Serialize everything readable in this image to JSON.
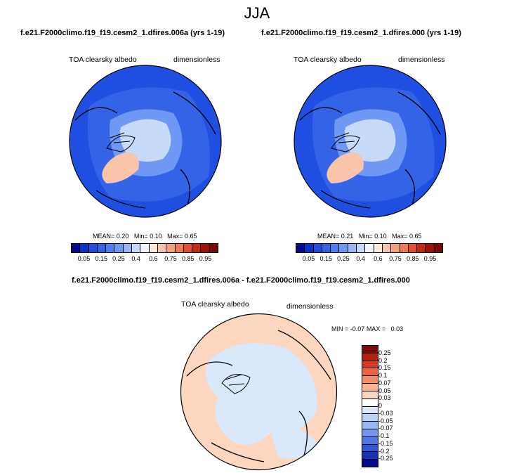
{
  "season": "JJA",
  "panels": [
    {
      "title": "f.e21.F2000climo.f19_f19.cesm2_1.dfires.006a (yrs 1-19)",
      "variable": "TOA clearsky albedo",
      "units": "dimensionless",
      "stats": {
        "mean_label": "MEAN=",
        "mean": "0.20",
        "min_label": "Min=",
        "min": "0.10",
        "max_label": "Max=",
        "max": "0.65"
      }
    },
    {
      "title": "f.e21.F2000climo.f19_f19.cesm2_1.dfires.000 (yrs 1-19)",
      "variable": "TOA clearsky albedo",
      "units": "dimensionless",
      "stats": {
        "mean_label": "MEAN=",
        "mean": "0.21",
        "min_label": "Min=",
        "min": "0.10",
        "max_label": "Max=",
        "max": "0.65"
      }
    }
  ],
  "main_colorbar": {
    "colors": [
      "#08088a",
      "#0d2fc4",
      "#1f4fe0",
      "#3563e8",
      "#4f7ff0",
      "#6f98f4",
      "#9ab6f7",
      "#c7daf9",
      "#eef5fc",
      "#fde7d8",
      "#f9c4a8",
      "#f4a07e",
      "#ee7a58",
      "#e04f33",
      "#c42a17",
      "#a0100a",
      "#7a0a05"
    ],
    "tick_labels": [
      "0.05",
      "0.15",
      "0.25",
      "0.4",
      "0.6",
      "0.75",
      "0.85",
      "0.95"
    ]
  },
  "difference": {
    "title": "f.e21.F2000climo.f19_f19.cesm2_1.dfires.006a - f.e21.F2000climo.f19_f19.cesm2_1.dfires.000",
    "variable": "TOA clearsky albedo",
    "units": "dimensionless",
    "stats": {
      "min_label": "MIN =",
      "min": "-0.07",
      "max_label": "MAX =",
      "max": "0.03"
    },
    "colorbar": {
      "colors": [
        "#7a0a05",
        "#b5200f",
        "#d63a22",
        "#e86540",
        "#f48d66",
        "#f9b393",
        "#fcd6bf",
        "#ffffff",
        "#d9e9fb",
        "#b8d2f7",
        "#96b8f3",
        "#7098ef",
        "#4b78e6",
        "#2f58d6",
        "#1433b0",
        "#08088a"
      ],
      "tick_labels": [
        "0.25",
        "0.2",
        "0.15",
        "0.1",
        "0.07",
        "0.05",
        "0.03",
        "0",
        "-0.03",
        "-0.05",
        "-0.07",
        "-0.1",
        "-0.15",
        "-0.2",
        "-0.25"
      ]
    }
  }
}
